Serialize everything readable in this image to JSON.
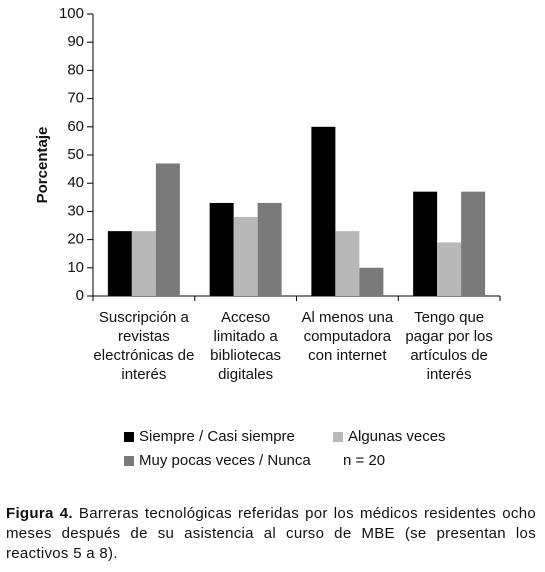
{
  "chart_data": {
    "type": "bar",
    "y_label": "Porcentaje",
    "categories": [
      "Suscripción a\nrevistas\nelectrónicas de\ninterés",
      "Acceso\nlimitado a\nbibliotecas\ndigitales",
      "Al menos una\ncomputadora\ncon internet",
      "Tengo que\npagar por los\nartículos de\ninterés"
    ],
    "series": [
      {
        "name": "Siempre / Casi siempre",
        "color": "#000000",
        "values": [
          23,
          33,
          60,
          37
        ]
      },
      {
        "name": "Algunas veces",
        "color": "#b8b8b8",
        "values": [
          23,
          28,
          23,
          19
        ]
      },
      {
        "name": "Muy pocas veces / Nunca",
        "color": "#7a7a7a",
        "values": [
          47,
          33,
          10,
          37
        ]
      }
    ],
    "annotation": "n = 20",
    "ylim": [
      0,
      100
    ],
    "yticks": [
      0,
      10,
      20,
      30,
      40,
      50,
      60,
      70,
      80,
      90,
      100
    ],
    "caption_label": "Figura 4.",
    "caption": "Barreras tecnológicas referidas por los médicos residentes ocho meses después de su asistencia al curso de MBE (se presentan los reactivos 5 a 8)."
  }
}
